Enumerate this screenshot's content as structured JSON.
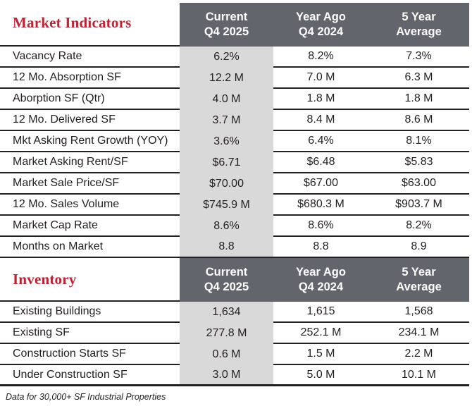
{
  "colors": {
    "header_band_bg": "#63656c",
    "header_band_text": "#ffffff",
    "section_title_red": "#c32032",
    "highlight_column_bg": "#d9d9d9",
    "body_text": "#231f20"
  },
  "columns": [
    {
      "line1": "Current",
      "line2": "Q4 2025"
    },
    {
      "line1": "Year Ago",
      "line2": "Q4 2024"
    },
    {
      "line1": "5 Year",
      "line2": "Average"
    }
  ],
  "sections": [
    {
      "title": "Market Indicators",
      "rows": [
        {
          "label": "Vacancy Rate",
          "current": "6.2%",
          "year_ago": "8.2%",
          "five_year": "7.3%"
        },
        {
          "label": "12 Mo. Absorption SF",
          "current": "12.2 M",
          "year_ago": "7.0 M",
          "five_year": "6.3 M"
        },
        {
          "label": "Aborption SF (Qtr)",
          "current": "4.0 M",
          "year_ago": "1.8 M",
          "five_year": "1.8 M"
        },
        {
          "label": "12 Mo. Delivered SF",
          "current": "3.7 M",
          "year_ago": "8.4 M",
          "five_year": "8.6 M"
        },
        {
          "label": "Mkt Asking Rent Growth (YOY)",
          "current": "3.6%",
          "year_ago": "6.4%",
          "five_year": "8.1%"
        },
        {
          "label": "Market Asking Rent/SF",
          "current": "$6.71",
          "year_ago": "$6.48",
          "five_year": "$5.83"
        },
        {
          "label": "Market Sale Price/SF",
          "current": "$70.00",
          "year_ago": "$67.00",
          "five_year": "$63.00"
        },
        {
          "label": "12 Mo. Sales Volume",
          "current": "$745.9 M",
          "year_ago": "$680.3 M",
          "five_year": "$903.7 M"
        },
        {
          "label": "Market Cap Rate",
          "current": "8.6%",
          "year_ago": "8.6%",
          "five_year": "8.2%"
        },
        {
          "label": "Months on Market",
          "current": "8.8",
          "year_ago": "8.8",
          "five_year": "8.9"
        }
      ]
    },
    {
      "title": "Inventory",
      "rows": [
        {
          "label": "Existing Buildings",
          "current": "1,634",
          "year_ago": "1,615",
          "five_year": "1,568"
        },
        {
          "label": "Existing SF",
          "current": "277.8 M",
          "year_ago": "252.1 M",
          "five_year": "234.1 M"
        },
        {
          "label": "Construction Starts SF",
          "current": "0.6 M",
          "year_ago": "1.5 M",
          "five_year": "2.2 M"
        },
        {
          "label": "Under Construction SF",
          "current": "3.0 M",
          "year_ago": "5.0 M",
          "five_year": "10.1 M"
        }
      ]
    }
  ],
  "footnote": "Data for 30,000+ SF Industrial Properties"
}
